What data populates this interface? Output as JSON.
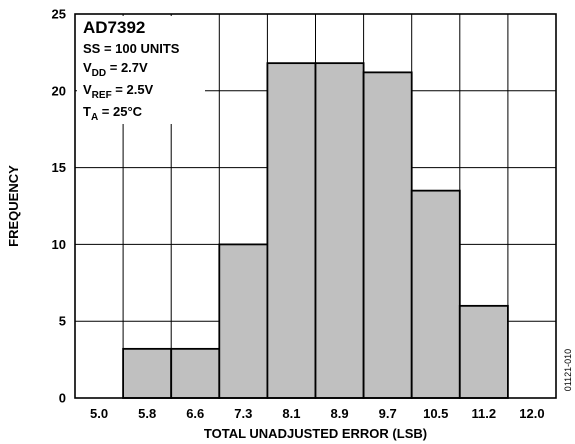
{
  "chart_data": {
    "type": "bar",
    "title": "",
    "xlabel": "TOTAL UNADJUSTED ERROR (LSB)",
    "ylabel": "FREQUENCY",
    "categories": [
      "5.0",
      "5.8",
      "6.6",
      "7.3",
      "8.1",
      "8.9",
      "9.7",
      "10.5",
      "11.2",
      "12.0"
    ],
    "values": [
      0,
      3.2,
      3.2,
      10,
      21.8,
      21.8,
      21.2,
      13.5,
      6,
      0
    ],
    "ylim": [
      0,
      25
    ],
    "yticks": [
      "0",
      "5",
      "10",
      "15",
      "20",
      "25"
    ],
    "grid": true,
    "bar_color": "#c0c0c0",
    "legend": {
      "placement": "top-left",
      "part_number": "AD7392",
      "lines": [
        {
          "main": "SS = 100 UNITS",
          "sub": "",
          "tail": ""
        },
        {
          "main": "V",
          "sub": "DD",
          "tail": " = 2.7V"
        },
        {
          "main": "V",
          "sub": "REF",
          "tail": " = 2.5V"
        },
        {
          "main": "T",
          "sub": "A",
          "tail": " = 25°C"
        }
      ]
    },
    "figure_id": "01121-010"
  }
}
